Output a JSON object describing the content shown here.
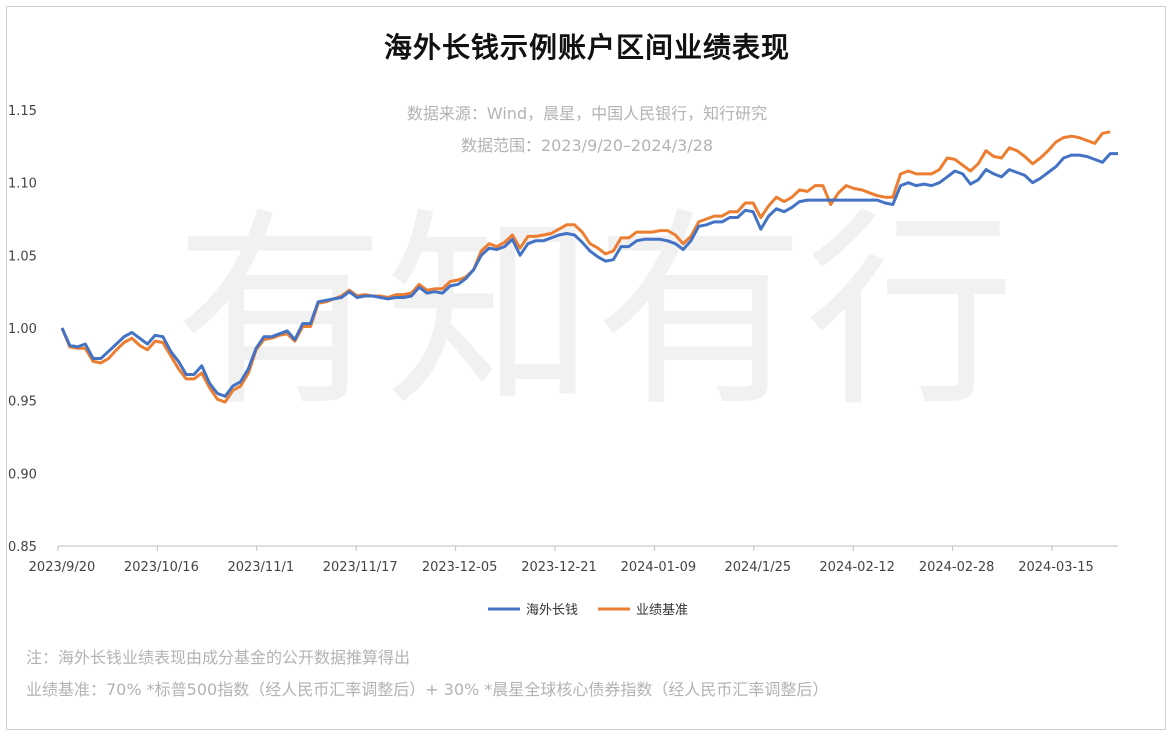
{
  "page": {
    "title": "海外长钱示例账户区间业绩表现",
    "source": "数据来源：Wind，晨星，中国人民银行，知行研究",
    "range": "数据范围：2023/9/20–2024/3/28",
    "watermark": "有知有行",
    "note1": "注：海外长钱业绩表现由成分基金的公开数据推算得出",
    "note2": "业绩基准：70% *标普500指数（经人民币汇率调整后）+ 30% *晨星全球核心债券指数（经人民币汇率调整后）"
  },
  "chart_data": {
    "type": "line",
    "title": "海外长钱示例账户区间业绩表现",
    "xlabel": "",
    "ylabel": "",
    "ylim": [
      0.85,
      1.15
    ],
    "yticks": [
      "0.85",
      "0.90",
      "0.95",
      "1.00",
      "1.05",
      "1.10",
      "1.15"
    ],
    "xtick_labels": [
      "2023/9/20",
      "2023/10/16",
      "2023/11/1",
      "2023/11/17",
      "2023-12-05",
      "2023-12-21",
      "2024-01-09",
      "2024/1/25",
      "2024-02-12",
      "2024-02-28",
      "2024-03-15"
    ],
    "grid": false,
    "legend": "bottom-center",
    "colors": {
      "海外长钱": "#4472c4",
      "业绩基准": "#ed7d31"
    },
    "series": [
      {
        "name": "海外长钱",
        "values": [
          1.0,
          0.988,
          0.987,
          0.989,
          0.979,
          0.979,
          0.984,
          0.989,
          0.994,
          0.997,
          0.993,
          0.989,
          0.995,
          0.994,
          0.984,
          0.977,
          0.968,
          0.968,
          0.974,
          0.962,
          0.955,
          0.953,
          0.96,
          0.963,
          0.972,
          0.986,
          0.994,
          0.994,
          0.996,
          0.998,
          0.992,
          1.003,
          1.003,
          1.018,
          1.019,
          1.02,
          1.021,
          1.025,
          1.021,
          1.022,
          1.022,
          1.021,
          1.02,
          1.021,
          1.021,
          1.022,
          1.028,
          1.024,
          1.025,
          1.024,
          1.029,
          1.03,
          1.034,
          1.04,
          1.05,
          1.055,
          1.054,
          1.056,
          1.061,
          1.05,
          1.058,
          1.06,
          1.06,
          1.062,
          1.064,
          1.065,
          1.064,
          1.059,
          1.053,
          1.049,
          1.046,
          1.047,
          1.056,
          1.056,
          1.06,
          1.061,
          1.061,
          1.061,
          1.06,
          1.058,
          1.054,
          1.06,
          1.07,
          1.071,
          1.073,
          1.073,
          1.076,
          1.076,
          1.081,
          1.08,
          1.068,
          1.077,
          1.082,
          1.08,
          1.083,
          1.087,
          1.088,
          1.088,
          1.088,
          1.088,
          1.088,
          1.088,
          1.088,
          1.088,
          1.088,
          1.088,
          1.086,
          1.085,
          1.098,
          1.1,
          1.098,
          1.099,
          1.098,
          1.1,
          1.104,
          1.108,
          1.106,
          1.099,
          1.102,
          1.109,
          1.106,
          1.104,
          1.109,
          1.107,
          1.105,
          1.1,
          1.103,
          1.107,
          1.111,
          1.117,
          1.119,
          1.119,
          1.118,
          1.116,
          1.114,
          1.12,
          1.12
        ]
      },
      {
        "name": "业绩基准",
        "values": [
          1.0,
          0.987,
          0.986,
          0.986,
          0.977,
          0.976,
          0.979,
          0.985,
          0.99,
          0.993,
          0.988,
          0.985,
          0.991,
          0.99,
          0.981,
          0.972,
          0.965,
          0.965,
          0.969,
          0.959,
          0.951,
          0.949,
          0.957,
          0.96,
          0.969,
          0.985,
          0.992,
          0.993,
          0.995,
          0.996,
          0.991,
          1.001,
          1.001,
          1.017,
          1.018,
          1.02,
          1.022,
          1.026,
          1.022,
          1.023,
          1.022,
          1.022,
          1.021,
          1.023,
          1.023,
          1.024,
          1.03,
          1.026,
          1.027,
          1.027,
          1.032,
          1.033,
          1.035,
          1.04,
          1.053,
          1.058,
          1.056,
          1.059,
          1.064,
          1.055,
          1.063,
          1.063,
          1.064,
          1.065,
          1.068,
          1.071,
          1.071,
          1.066,
          1.058,
          1.055,
          1.051,
          1.053,
          1.062,
          1.062,
          1.066,
          1.066,
          1.066,
          1.067,
          1.067,
          1.064,
          1.058,
          1.063,
          1.073,
          1.075,
          1.077,
          1.077,
          1.08,
          1.08,
          1.086,
          1.086,
          1.076,
          1.084,
          1.09,
          1.087,
          1.09,
          1.095,
          1.094,
          1.098,
          1.098,
          1.085,
          1.093,
          1.098,
          1.096,
          1.095,
          1.093,
          1.091,
          1.09,
          1.09,
          1.106,
          1.108,
          1.106,
          1.106,
          1.106,
          1.109,
          1.117,
          1.116,
          1.112,
          1.108,
          1.113,
          1.122,
          1.118,
          1.117,
          1.124,
          1.122,
          1.118,
          1.113,
          1.117,
          1.122,
          1.128,
          1.131,
          1.132,
          1.131,
          1.129,
          1.127,
          1.134,
          1.135
        ]
      }
    ]
  }
}
